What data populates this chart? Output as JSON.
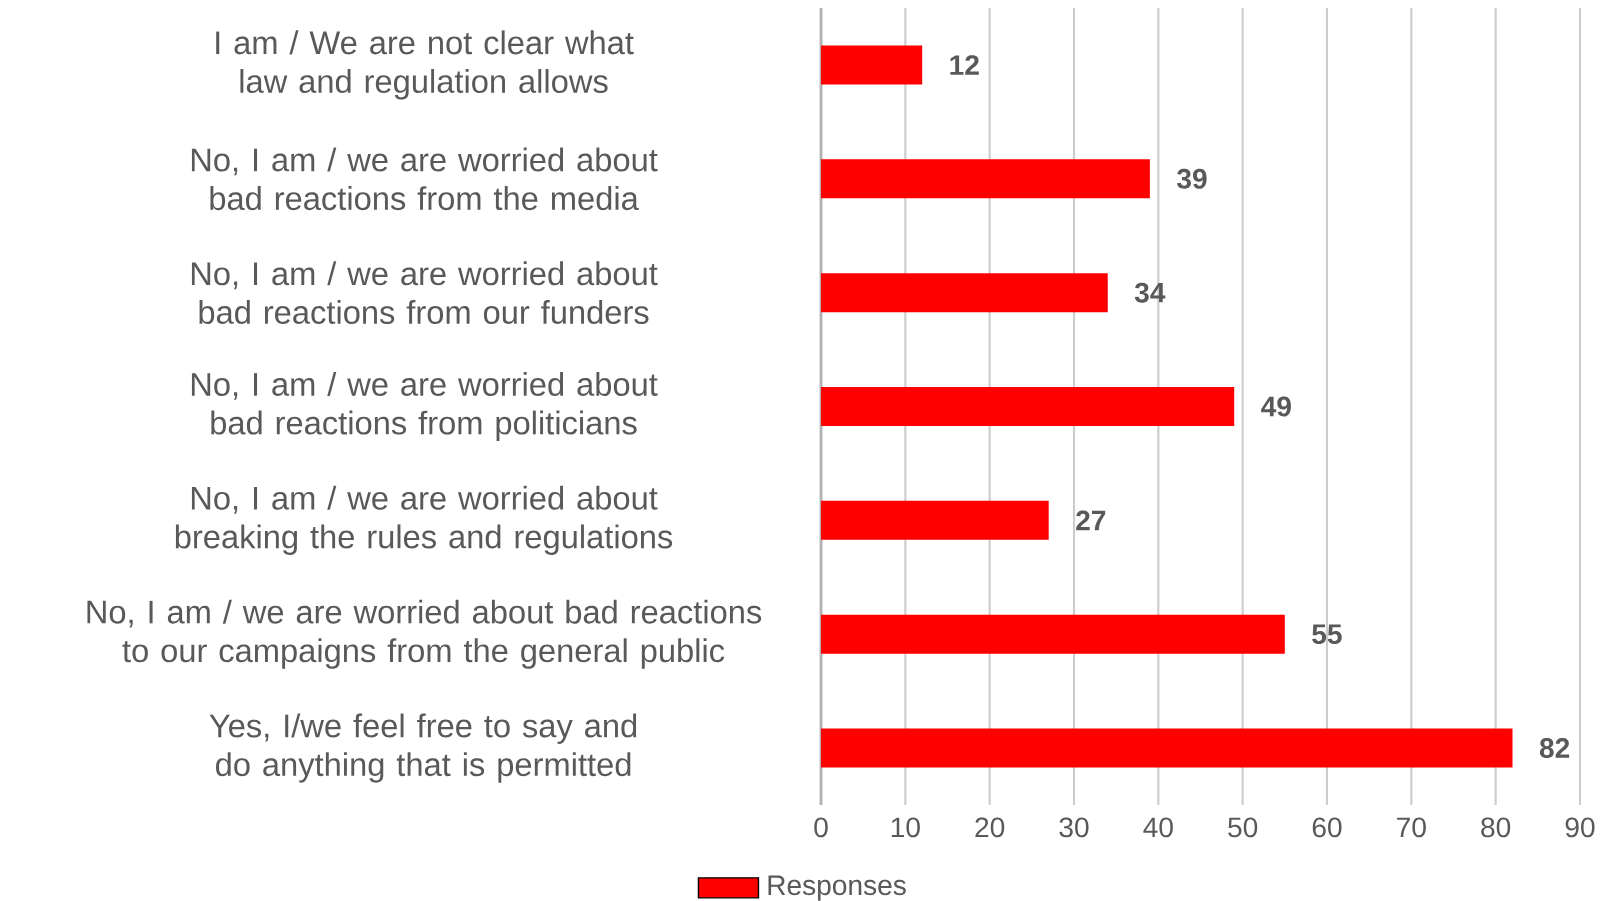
{
  "chart_data": {
    "type": "bar",
    "orientation": "horizontal",
    "categories": [
      "I am / We are not clear what law and regulation allows",
      "No, I am / we are worried about bad reactions from the media",
      "No, I am / we are worried about bad reactions from our funders",
      "No, I am / we are worried about bad reactions from politicians",
      "No, I am / we are worried about breaking the rules and regulations",
      "No, I am / we are worried about bad reactions to our campaigns from the general public",
      "Yes, I/we feel free to say and do anything that is permitted"
    ],
    "series": [
      {
        "name": "Responses",
        "color": "#ff0000",
        "values": [
          12,
          39,
          34,
          49,
          27,
          55,
          82
        ]
      }
    ],
    "xlim": [
      0,
      90
    ],
    "xticks": [
      0,
      10,
      20,
      30,
      40,
      50,
      60,
      70,
      80,
      90
    ],
    "grid": "x",
    "legend": "bottom",
    "data_labels": true
  }
}
